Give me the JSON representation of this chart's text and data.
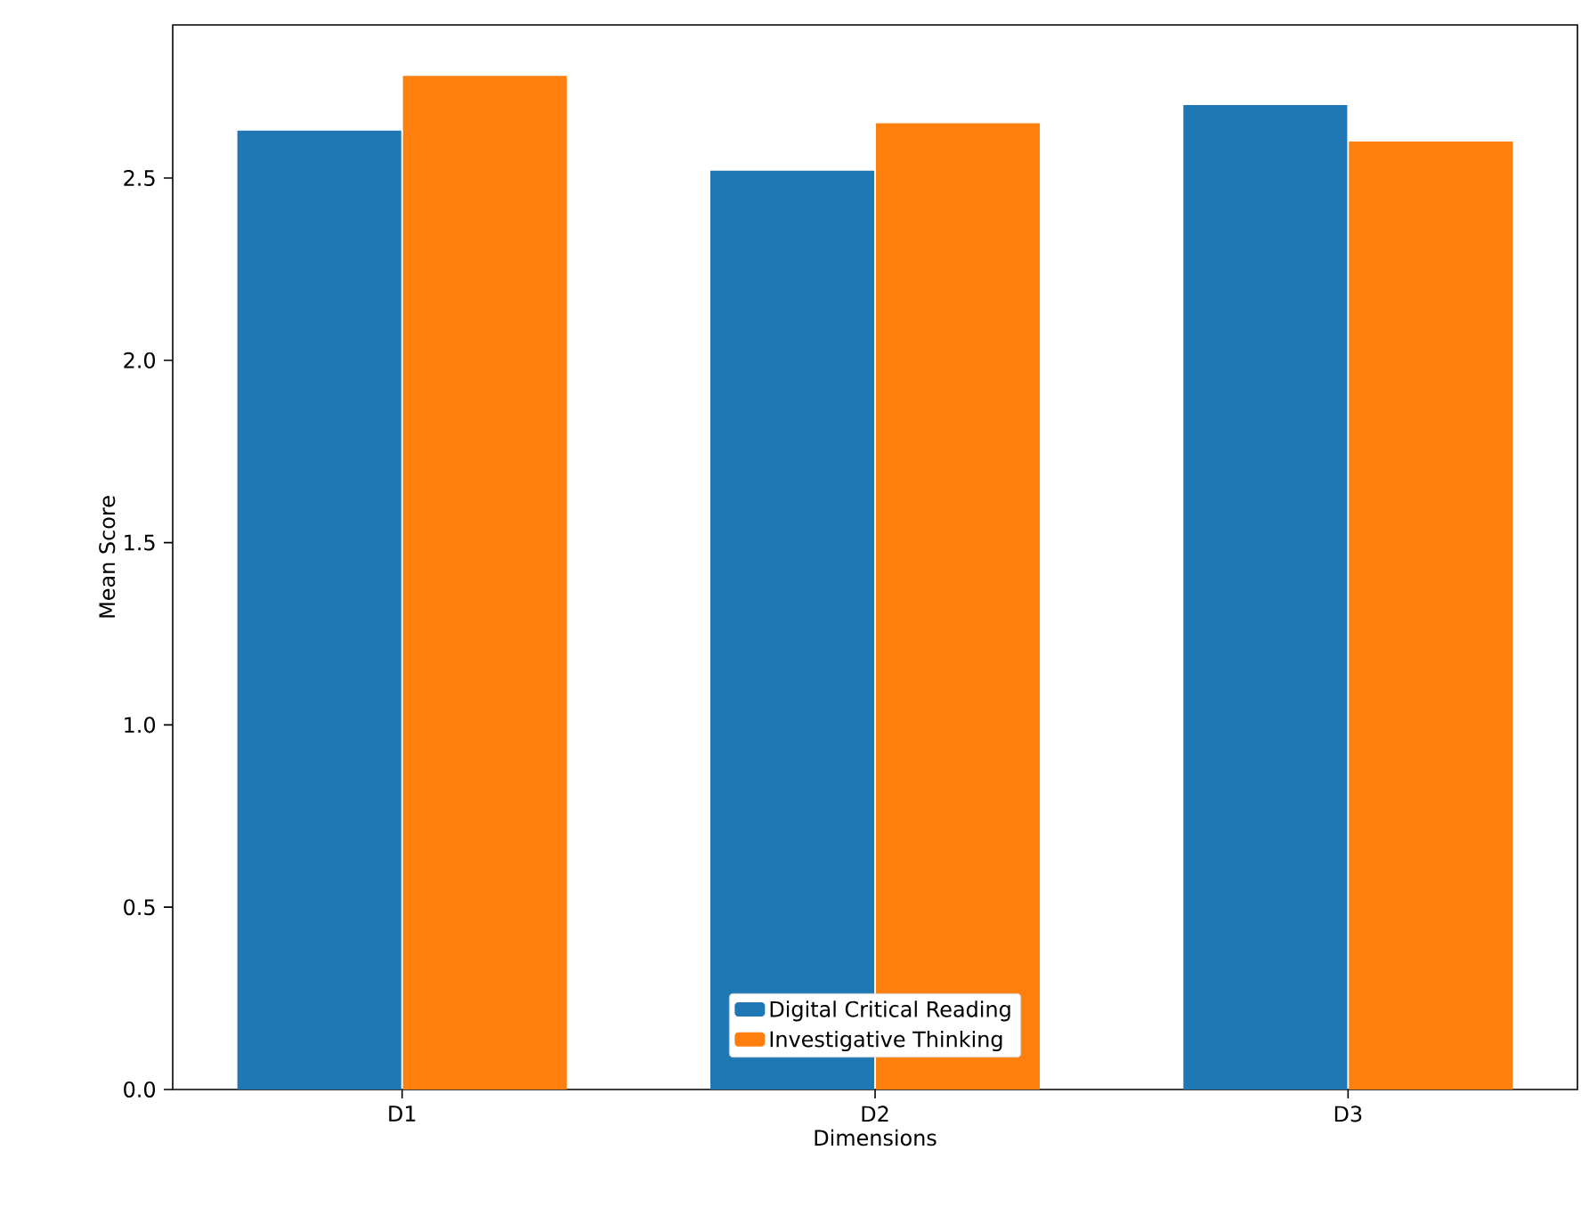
{
  "chart_data": {
    "type": "bar",
    "xlabel": "Dimensions",
    "ylabel": "Mean Score",
    "categories": [
      "D1",
      "D2",
      "D3"
    ],
    "series": [
      {
        "name": "Digital Critical Reading",
        "color": "#1f77b4",
        "values": [
          2.63,
          2.52,
          2.7
        ]
      },
      {
        "name": "Investigative Thinking",
        "color": "#ff7f0e",
        "values": [
          2.78,
          2.65,
          2.6
        ]
      }
    ],
    "ylim": [
      0,
      2.92
    ],
    "yticks": [
      {
        "value": 0,
        "label": "0.0"
      },
      0.5,
      {
        "value": 1,
        "label": "1.0"
      },
      1.5,
      {
        "value": 2,
        "label": "2.0"
      },
      2.5
    ],
    "legend": "bottom"
  }
}
